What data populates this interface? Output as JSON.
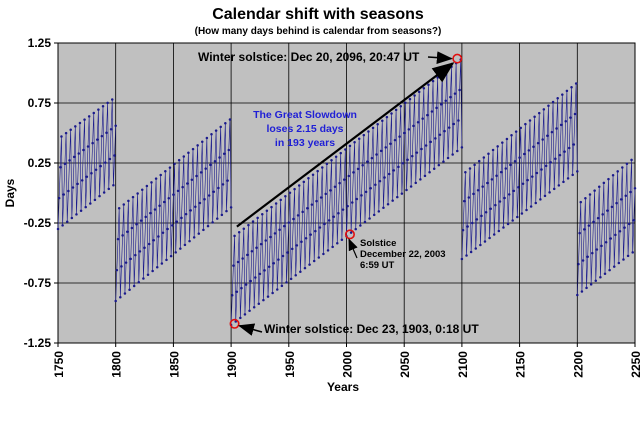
{
  "chart_data": {
    "type": "line",
    "title": "Calendar shift with seasons",
    "subtitle": "(How many days behind is calendar from seasons?)",
    "xlabel": "Years",
    "ylabel": "Days",
    "xlim": [
      1750,
      2250
    ],
    "ylim": [
      -1.25,
      1.25
    ],
    "x_ticks": [
      "1750",
      "1800",
      "1850",
      "1900",
      "1950",
      "2000",
      "2050",
      "2100",
      "2150",
      "2200",
      "2250"
    ],
    "y_ticks": [
      "1.25",
      "0.75",
      "0.25",
      "-0.25",
      "-0.75",
      "-1.25"
    ],
    "grid": true,
    "legend": "none",
    "series": [
      {
        "description_of_pattern": "annual points, 4-year leap cycle sawtooth",
        "segments": [
          {
            "x": [
              1750,
              1800
            ],
            "min_start": -0.3,
            "min_end": 0.08,
            "max_start": 0.45,
            "max_end": 0.8
          },
          {
            "x": [
              1800,
              1900
            ],
            "min_start": -0.9,
            "min_end": -0.12,
            "max_start": -0.15,
            "max_end": 0.62
          },
          {
            "x": [
              1900,
              2100
            ],
            "min_start": -1.1,
            "min_end": 0.38,
            "max_start": -0.38,
            "max_end": 1.12
          },
          {
            "x": [
              2100,
              2200
            ],
            "min_start": -0.55,
            "min_end": 0.18,
            "max_start": 0.15,
            "max_end": 0.92
          },
          {
            "x": [
              2200,
              2250
            ],
            "min_start": -0.85,
            "min_end": -0.48,
            "max_start": -0.1,
            "max_end": 0.3
          }
        ]
      }
    ],
    "highlighted_points": [
      {
        "x": 1903,
        "y": -1.09,
        "label": "Winter solstice: Dec 23, 1903, 0:18 UT"
      },
      {
        "x": 2003,
        "y": -0.345,
        "label_lines": [
          "Solstice",
          "December 22, 2003",
          "6:59 UT"
        ]
      },
      {
        "x": 2096,
        "y": 1.12,
        "label": "Winter solstice: Dec 20, 2096, 20:47 UT"
      }
    ],
    "trend_arrow": {
      "from": [
        1905,
        -0.28
      ],
      "to": [
        2092,
        1.08
      ]
    },
    "annotation": {
      "lines": [
        "The Great Slowdown",
        "loses 2.15 days",
        "in 193 years"
      ],
      "color": "#1f1fd6"
    },
    "colors": {
      "plot_background": "#c0c0c0",
      "series": "#1a1a8c",
      "highlight_ring": "#e01010",
      "grid": "#000000"
    }
  }
}
